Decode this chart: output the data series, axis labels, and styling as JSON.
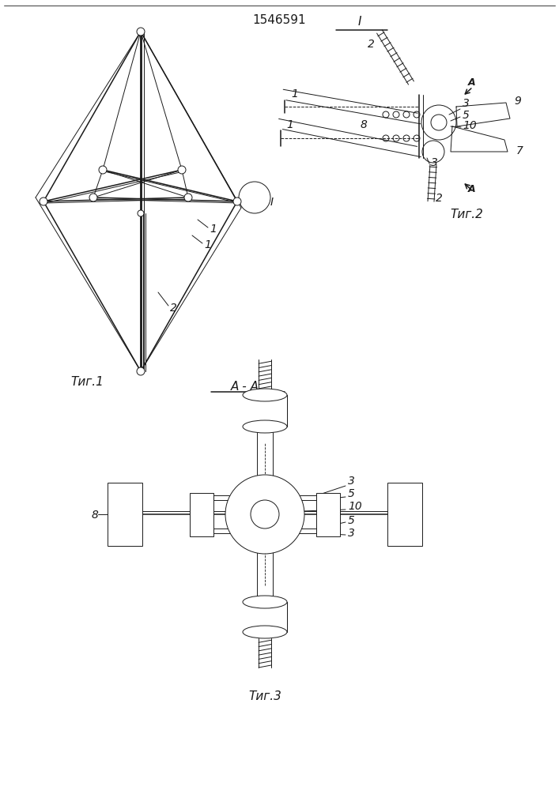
{
  "title": "1546591",
  "bg_color": "#ffffff",
  "line_color": "#1a1a1a",
  "fig1_label": "Τиг.1",
  "fig2_label": "Τиг.2",
  "fig3_label": "Τиг.3",
  "fig3_aa_label": "A - A"
}
